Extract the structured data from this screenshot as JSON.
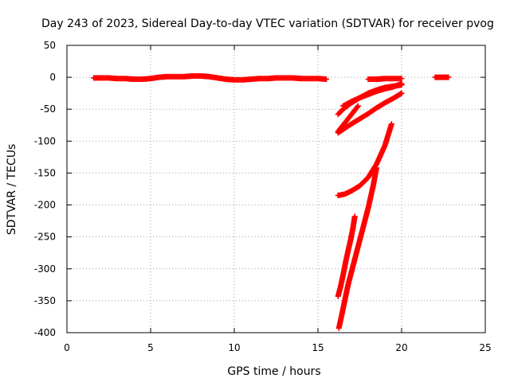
{
  "chart_data": {
    "type": "scatter",
    "title": "Day 243 of 2023, Sidereal Day-to-day VTEC variation (SDTVAR) for receiver pvog",
    "xlabel": "GPS time / hours",
    "ylabel": "SDTVAR / TECUs",
    "xlim": [
      0,
      25
    ],
    "ylim": [
      -400,
      50
    ],
    "xticks": [
      0,
      5,
      10,
      15,
      20,
      25
    ],
    "yticks": [
      50,
      0,
      -50,
      -100,
      -150,
      -200,
      -250,
      -300,
      -350,
      -400
    ],
    "xtick_labels": [
      "0",
      "5",
      "10",
      "15",
      "20",
      "25"
    ],
    "ytick_labels": [
      "50",
      "0",
      "-50",
      "-100",
      "-150",
      "-200",
      "-250",
      "-300",
      "-350",
      "-400"
    ],
    "grid": true,
    "legend": "none",
    "marker": "plus",
    "color": "#ff0000",
    "series": [
      {
        "x": [
          1.6,
          2.0,
          2.5,
          3.0,
          3.5,
          4.0,
          4.5,
          5.0,
          5.5,
          6.0,
          6.5,
          7.0,
          7.5,
          8.0,
          8.5,
          9.0,
          9.5,
          10.0,
          10.5,
          11.0,
          11.5,
          12.0,
          12.5,
          13.0,
          13.5,
          14.0,
          14.5,
          15.0,
          15.5
        ],
        "y": [
          -1,
          -1,
          -1,
          -2,
          -2,
          -3,
          -3,
          -2,
          0,
          1,
          1,
          1,
          2,
          2,
          1,
          -1,
          -3,
          -4,
          -4,
          -3,
          -2,
          -2,
          -1,
          -1,
          -1,
          -2,
          -2,
          -2,
          -3
        ]
      },
      {
        "x": [
          18.0,
          18.5,
          19.0,
          19.5,
          20.0
        ],
        "y": [
          -3,
          -3,
          -2,
          -2,
          -2
        ]
      },
      {
        "x": [
          22.0,
          22.3,
          22.6,
          22.8
        ],
        "y": [
          0,
          0,
          0,
          0
        ]
      },
      {
        "x": [
          16.2,
          16.5,
          17.0,
          17.5,
          18.0,
          18.5,
          19.0,
          19.5,
          20.0
        ],
        "y": [
          -58,
          -50,
          -40,
          -32,
          -25,
          -20,
          -16,
          -14,
          -12
        ]
      },
      {
        "x": [
          16.5,
          17.0,
          17.5,
          18.0,
          18.5,
          19.0,
          19.5,
          20.0
        ],
        "y": [
          -45,
          -38,
          -32,
          -27,
          -22,
          -18,
          -15,
          -10
        ]
      },
      {
        "x": [
          16.2,
          16.5,
          16.8,
          17.1,
          17.4
        ],
        "y": [
          -85,
          -75,
          -65,
          -55,
          -45
        ]
      },
      {
        "x": [
          16.2,
          16.6,
          17.0,
          17.5,
          18.0,
          18.5,
          19.0,
          19.5,
          20.0
        ],
        "y": [
          -87,
          -80,
          -73,
          -65,
          -57,
          -48,
          -40,
          -33,
          -25
        ]
      },
      {
        "x": [
          16.2,
          16.6,
          17.0,
          17.5,
          18.0,
          18.5,
          19.0,
          19.4
        ],
        "y": [
          -185,
          -183,
          -178,
          -170,
          -157,
          -136,
          -107,
          -73
        ]
      },
      {
        "x": [
          16.2,
          16.35,
          16.5,
          16.65,
          16.8,
          16.95,
          17.1,
          17.2
        ],
        "y": [
          -343,
          -328,
          -310,
          -290,
          -272,
          -255,
          -235,
          -218
        ]
      },
      {
        "x": [
          16.25,
          16.4,
          16.6,
          16.8,
          17.1,
          17.4,
          17.7,
          18.0,
          18.3,
          18.5
        ],
        "y": [
          -393,
          -375,
          -350,
          -325,
          -295,
          -265,
          -235,
          -205,
          -170,
          -142
        ]
      }
    ]
  }
}
